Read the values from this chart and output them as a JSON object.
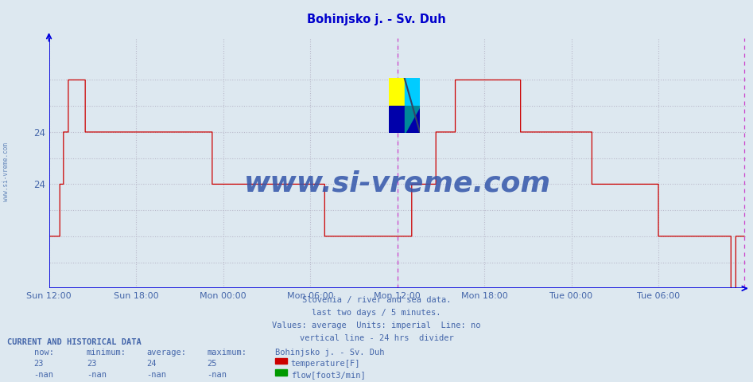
{
  "title": "Bohinjsko j. - Sv. Duh",
  "title_color": "#0000cc",
  "bg_color": "#dde8f0",
  "plot_bg_color": "#dde8f0",
  "grid_color": "#bbbbcc",
  "line_color": "#cc0000",
  "ylabel_color": "#4466aa",
  "xlabel_color": "#4466aa",
  "axis_color": "#0000dd",
  "xtick_labels": [
    "Sun 12:00",
    "Sun 18:00",
    "Mon 00:00",
    "Mon 06:00",
    "Mon 12:00",
    "Mon 18:00",
    "Tue 00:00",
    "Tue 06:00"
  ],
  "ytick_labels_left": [
    "",
    "",
    "24",
    "",
    "",
    "24",
    "",
    ""
  ],
  "ymin": 21.0,
  "ymax": 25.8,
  "footer_lines": [
    "Slovenia / river and sea data.",
    "last two days / 5 minutes.",
    "Values: average  Units: imperial  Line: no",
    "vertical line - 24 hrs  divider"
  ],
  "table_header": "CURRENT AND HISTORICAL DATA",
  "table_col_headers": [
    "now:",
    "minimum:",
    "average:",
    "maximum:",
    "Bohinjsko j. - Sv. Duh"
  ],
  "row1_vals": [
    "23",
    "23",
    "24",
    "25"
  ],
  "row1_label": "temperature[F]",
  "row1_color": "#cc0000",
  "row2_vals": [
    "-nan",
    "-nan",
    "-nan",
    "-nan"
  ],
  "row2_label": "flow[foot3/min]",
  "row2_color": "#009900",
  "watermark": "www.si-vreme.com",
  "watermark_color": "#3355aa",
  "side_label": "www.si-vreme.com",
  "n_points": 576,
  "xtick_positions": [
    0,
    72,
    144,
    216,
    288,
    360,
    432,
    504
  ]
}
